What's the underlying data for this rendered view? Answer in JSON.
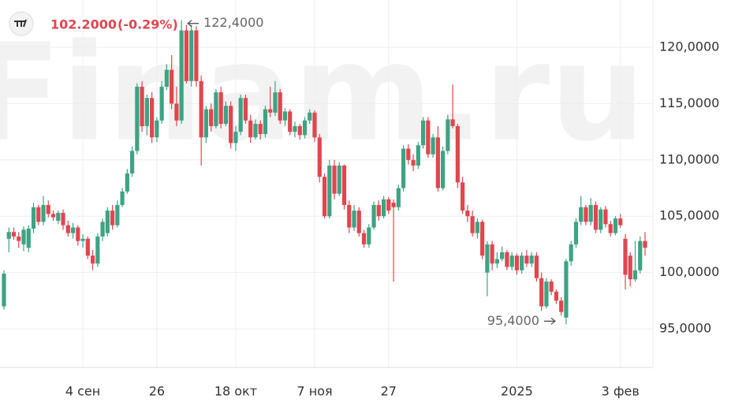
{
  "chart_data": {
    "type": "candlestick",
    "watermark": "Finam.ru",
    "price": "102.2000",
    "change": "(-0.29%)",
    "up_color": "#3da383",
    "down_color": "#e0464f",
    "grid": true,
    "ylim": [
      91.57,
      124.2
    ],
    "yticks": [
      {
        "value": 95,
        "label": "95,0000"
      },
      {
        "value": 100,
        "label": "100,0000"
      },
      {
        "value": 105,
        "label": "105,0000"
      },
      {
        "value": 110,
        "label": "110,0000"
      },
      {
        "value": 115,
        "label": "115,0000"
      },
      {
        "value": 120,
        "label": "120,0000"
      }
    ],
    "max_annotation": {
      "value": 122.4,
      "label": "122,4000"
    },
    "min_annotation": {
      "value": 95.4,
      "label": "95,4000"
    },
    "categories": [
      null,
      null,
      null,
      null,
      null,
      null,
      null,
      null,
      null,
      null,
      null,
      null,
      null,
      null,
      null,
      null,
      "4 сен",
      null,
      null,
      null,
      null,
      null,
      null,
      null,
      null,
      null,
      null,
      null,
      null,
      null,
      null,
      "26",
      null,
      null,
      null,
      null,
      null,
      null,
      null,
      null,
      null,
      null,
      null,
      null,
      null,
      null,
      null,
      "18 окт",
      null,
      null,
      null,
      null,
      null,
      null,
      null,
      null,
      null,
      null,
      null,
      null,
      null,
      null,
      null,
      "7 ноя",
      null,
      null,
      null,
      null,
      null,
      null,
      null,
      null,
      null,
      null,
      null,
      null,
      null,
      null,
      "27",
      null,
      null,
      null,
      null,
      null,
      null,
      null,
      null,
      null,
      null,
      null,
      null,
      null,
      null,
      null,
      null,
      null,
      null,
      null,
      null,
      null,
      null,
      null,
      null,
      null,
      "2025",
      null,
      null,
      null,
      null,
      null,
      null,
      null,
      null,
      null,
      null,
      null,
      null,
      null,
      null,
      null,
      null,
      null,
      null,
      null,
      null,
      "3 фев",
      null,
      null,
      null,
      null
    ],
    "candles": [
      [
        97.0,
        100.2,
        96.7,
        99.9
      ],
      [
        103.0,
        104.0,
        101.8,
        103.6
      ],
      [
        103.6,
        104.0,
        102.9,
        103.2
      ],
      [
        103.2,
        103.6,
        102.2,
        102.8
      ],
      [
        102.5,
        104.1,
        101.9,
        103.8
      ],
      [
        102.2,
        104.2,
        101.8,
        103.9
      ],
      [
        103.9,
        106.2,
        103.5,
        105.8
      ],
      [
        105.8,
        106.0,
        104.2,
        104.5
      ],
      [
        104.5,
        106.8,
        104.2,
        106.0
      ],
      [
        106.0,
        106.4,
        104.9,
        105.2
      ],
      [
        105.2,
        105.5,
        104.6,
        104.9
      ],
      [
        104.6,
        105.5,
        104.3,
        105.3
      ],
      [
        105.3,
        105.6,
        103.8,
        104.2
      ],
      [
        104.2,
        104.6,
        103.2,
        103.5
      ],
      [
        103.5,
        104.4,
        103.0,
        104.0
      ],
      [
        104.0,
        104.2,
        102.4,
        102.8
      ],
      [
        102.8,
        103.4,
        102.2,
        103.0
      ],
      [
        103.0,
        103.2,
        101.2,
        101.5
      ],
      [
        101.5,
        102.0,
        100.2,
        100.8
      ],
      [
        100.8,
        103.5,
        100.5,
        103.2
      ],
      [
        103.2,
        104.8,
        102.8,
        104.5
      ],
      [
        103.5,
        105.8,
        103.2,
        105.5
      ],
      [
        105.5,
        106.0,
        103.8,
        104.2
      ],
      [
        104.2,
        106.4,
        104.0,
        106.0
      ],
      [
        106.0,
        107.5,
        105.8,
        107.2
      ],
      [
        107.2,
        109.2,
        107.0,
        108.8
      ],
      [
        108.8,
        111.2,
        108.5,
        110.8
      ],
      [
        110.8,
        116.8,
        110.5,
        116.5
      ],
      [
        116.5,
        117.0,
        112.5,
        113.0
      ],
      [
        113.0,
        115.8,
        112.2,
        115.5
      ],
      [
        115.5,
        116.0,
        111.5,
        112.0
      ],
      [
        112.0,
        113.8,
        111.6,
        113.5
      ],
      [
        113.5,
        117.0,
        113.2,
        116.5
      ],
      [
        116.5,
        118.5,
        116.2,
        118.0
      ],
      [
        118.0,
        119.3,
        114.5,
        115.0
      ],
      [
        115.0,
        116.5,
        113.0,
        113.5
      ],
      [
        113.5,
        122.4,
        113.2,
        121.5
      ],
      [
        121.5,
        122.0,
        116.8,
        117.0
      ],
      [
        117.0,
        122.0,
        116.5,
        121.5
      ],
      [
        121.5,
        121.9,
        116.5,
        117.0
      ],
      [
        117.0,
        117.5,
        109.5,
        112.0
      ],
      [
        112.0,
        114.8,
        111.5,
        114.5
      ],
      [
        114.5,
        115.0,
        112.5,
        113.0
      ],
      [
        113.0,
        116.3,
        112.8,
        116.0
      ],
      [
        116.0,
        116.5,
        112.8,
        113.2
      ],
      [
        113.2,
        115.2,
        113.0,
        114.8
      ],
      [
        114.8,
        115.2,
        111.0,
        111.5
      ],
      [
        111.5,
        113.0,
        110.8,
        112.5
      ],
      [
        112.5,
        115.8,
        112.2,
        115.5
      ],
      [
        115.5,
        115.8,
        113.2,
        113.5
      ],
      [
        113.5,
        114.0,
        111.5,
        112.0
      ],
      [
        112.0,
        113.6,
        111.8,
        113.2
      ],
      [
        113.2,
        113.5,
        111.8,
        112.3
      ],
      [
        112.3,
        114.8,
        112.0,
        114.5
      ],
      [
        114.5,
        116.5,
        113.8,
        114.2
      ],
      [
        114.2,
        117.0,
        113.9,
        116.0
      ],
      [
        116.0,
        116.3,
        113.2,
        113.5
      ],
      [
        113.5,
        114.6,
        113.0,
        114.3
      ],
      [
        114.3,
        114.5,
        112.2,
        112.5
      ],
      [
        112.5,
        113.4,
        112.0,
        113.0
      ],
      [
        113.0,
        113.2,
        111.8,
        112.2
      ],
      [
        112.2,
        113.8,
        111.9,
        113.5
      ],
      [
        113.5,
        114.5,
        113.2,
        114.2
      ],
      [
        114.2,
        114.4,
        111.6,
        112.0
      ],
      [
        112.0,
        112.3,
        108.0,
        108.5
      ],
      [
        108.5,
        108.8,
        104.8,
        105.0
      ],
      [
        105.0,
        110.0,
        104.8,
        109.5
      ],
      [
        109.5,
        110.0,
        106.5,
        107.0
      ],
      [
        107.0,
        109.8,
        106.8,
        109.5
      ],
      [
        109.5,
        109.6,
        105.6,
        106.0
      ],
      [
        106.0,
        106.4,
        103.5,
        104.0
      ],
      [
        104.0,
        106.0,
        103.7,
        105.5
      ],
      [
        105.5,
        105.8,
        103.2,
        103.5
      ],
      [
        103.5,
        103.8,
        102.2,
        102.5
      ],
      [
        102.5,
        104.3,
        102.2,
        104.0
      ],
      [
        104.0,
        106.3,
        103.8,
        106.0
      ],
      [
        106.0,
        106.4,
        104.6,
        105.0
      ],
      [
        105.0,
        106.8,
        104.8,
        106.5
      ],
      [
        106.5,
        106.7,
        105.2,
        105.5
      ],
      [
        106.2,
        106.5,
        99.2,
        105.8
      ],
      [
        105.8,
        107.8,
        105.5,
        107.5
      ],
      [
        107.5,
        111.3,
        107.2,
        111.0
      ],
      [
        111.0,
        111.4,
        109.6,
        110.0
      ],
      [
        110.0,
        110.5,
        109.0,
        109.5
      ],
      [
        109.5,
        111.6,
        109.2,
        111.3
      ],
      [
        111.3,
        113.8,
        111.0,
        113.5
      ],
      [
        113.5,
        113.8,
        110.2,
        110.5
      ],
      [
        110.5,
        112.3,
        110.2,
        112.0
      ],
      [
        112.0,
        113.0,
        107.2,
        107.5
      ],
      [
        107.5,
        111.2,
        107.3,
        110.8
      ],
      [
        110.8,
        114.0,
        110.5,
        113.6
      ],
      [
        113.6,
        116.7,
        112.8,
        113.0
      ],
      [
        113.0,
        113.2,
        107.5,
        108.0
      ],
      [
        108.0,
        108.5,
        105.2,
        105.5
      ],
      [
        105.5,
        106.0,
        104.5,
        105.0
      ],
      [
        105.0,
        105.5,
        103.2,
        103.5
      ],
      [
        103.5,
        104.8,
        103.0,
        104.5
      ],
      [
        104.5,
        104.7,
        101.2,
        101.5
      ],
      [
        100.0,
        102.8,
        97.9,
        102.5
      ],
      [
        102.5,
        102.8,
        100.2,
        100.8
      ],
      [
        100.8,
        101.8,
        100.4,
        101.2
      ],
      [
        101.2,
        102.3,
        101.0,
        101.8
      ],
      [
        101.8,
        102.0,
        100.2,
        100.5
      ],
      [
        100.5,
        101.8,
        100.2,
        101.5
      ],
      [
        101.5,
        101.7,
        99.8,
        100.2
      ],
      [
        100.2,
        101.8,
        99.9,
        101.5
      ],
      [
        101.5,
        102.0,
        100.5,
        100.8
      ],
      [
        100.8,
        101.8,
        100.5,
        101.5
      ],
      [
        101.5,
        101.8,
        99.2,
        99.5
      ],
      [
        99.5,
        100.0,
        96.6,
        97.0
      ],
      [
        97.0,
        99.5,
        96.8,
        99.2
      ],
      [
        99.2,
        99.4,
        98.0,
        98.3
      ],
      [
        98.3,
        98.5,
        97.2,
        97.5
      ],
      [
        97.5,
        97.8,
        96.2,
        96.5
      ],
      [
        96.0,
        101.2,
        95.4,
        101.0
      ],
      [
        101.0,
        102.8,
        100.6,
        102.5
      ],
      [
        102.5,
        104.8,
        102.2,
        104.5
      ],
      [
        104.5,
        106.8,
        104.2,
        105.8
      ],
      [
        105.8,
        106.0,
        104.2,
        104.5
      ],
      [
        104.5,
        106.6,
        104.2,
        106.0
      ],
      [
        106.0,
        106.3,
        103.5,
        103.8
      ],
      [
        103.8,
        105.8,
        103.5,
        105.6
      ],
      [
        105.6,
        105.9,
        104.0,
        104.3
      ],
      [
        104.3,
        104.6,
        103.2,
        103.5
      ],
      [
        103.5,
        105.0,
        103.3,
        104.8
      ],
      [
        104.8,
        105.2,
        104.0,
        104.2
      ],
      [
        103.0,
        103.4,
        98.5,
        99.8
      ],
      [
        101.5,
        101.8,
        98.8,
        99.4
      ],
      [
        99.4,
        102.8,
        99.2,
        100.2
      ],
      [
        100.2,
        103.2,
        99.9,
        102.8
      ],
      [
        102.8,
        103.6,
        101.5,
        102.2
      ]
    ]
  }
}
